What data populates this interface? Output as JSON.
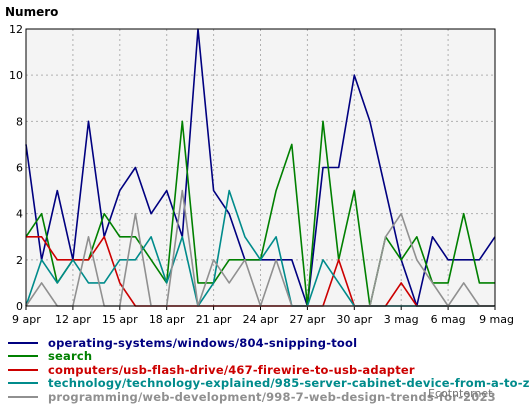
{
  "chart_data": {
    "type": "line",
    "ylabel": "Numero",
    "ylim": [
      0,
      12
    ],
    "yticks": [
      0,
      2,
      4,
      6,
      8,
      10,
      12
    ],
    "x_count": 31,
    "x_ticks": [
      {
        "index": 0,
        "label": "9 apr"
      },
      {
        "index": 3,
        "label": "12 apr"
      },
      {
        "index": 6,
        "label": "15 apr"
      },
      {
        "index": 9,
        "label": "18 apr"
      },
      {
        "index": 12,
        "label": "21 apr"
      },
      {
        "index": 15,
        "label": "24 apr"
      },
      {
        "index": 18,
        "label": "27 apr"
      },
      {
        "index": 21,
        "label": "30 apr"
      },
      {
        "index": 24,
        "label": "3 mag"
      },
      {
        "index": 27,
        "label": "6 mag"
      },
      {
        "index": 30,
        "label": "9 mag"
      }
    ],
    "grid": true,
    "legend_position": "bottom",
    "series": [
      {
        "name": "operating-systems/windows/804-snipping-tool",
        "color": "#000080",
        "values": [
          7,
          2,
          5,
          2,
          8,
          3,
          5,
          6,
          4,
          5,
          3,
          12,
          5,
          4,
          2,
          2,
          2,
          2,
          0,
          6,
          6,
          10,
          8,
          5,
          2,
          0,
          3,
          2,
          2,
          2,
          3
        ]
      },
      {
        "name": "search",
        "color": "#008000",
        "values": [
          3,
          4,
          1,
          2,
          2,
          4,
          3,
          3,
          2,
          1,
          8,
          1,
          1,
          2,
          2,
          2,
          5,
          7,
          0,
          8,
          2,
          5,
          0,
          3,
          2,
          3,
          1,
          1,
          4,
          1,
          1
        ]
      },
      {
        "name": "computers/usb-flash-drive/467-firewire-to-usb-adapter",
        "color": "#cc0000",
        "values": [
          3,
          3,
          2,
          2,
          2,
          3,
          1,
          0,
          0,
          0,
          0,
          0,
          0,
          0,
          0,
          0,
          0,
          0,
          0,
          0,
          2,
          0,
          0,
          0,
          1,
          0,
          0,
          0,
          0,
          0,
          0
        ]
      },
      {
        "name": "technology/technology-explained/985-server-cabinet-device-from-a-to-z",
        "color": "#008b8b",
        "values": [
          0,
          2,
          1,
          2,
          1,
          1,
          2,
          2,
          3,
          1,
          3,
          0,
          1,
          5,
          3,
          2,
          3,
          0,
          0,
          2,
          1,
          0,
          0,
          0,
          0,
          0,
          0,
          0,
          0,
          0,
          0
        ]
      },
      {
        "name": "programming/web-development/998-7-web-design-trends-for-2023",
        "color": "#909090",
        "values": [
          0,
          1,
          0,
          0,
          3,
          0,
          0,
          4,
          0,
          0,
          5,
          0,
          2,
          1,
          2,
          0,
          2,
          0,
          0,
          0,
          0,
          0,
          0,
          3,
          4,
          2,
          1,
          0,
          1,
          0,
          0
        ]
      }
    ]
  },
  "watermark": "Ecotnternet"
}
